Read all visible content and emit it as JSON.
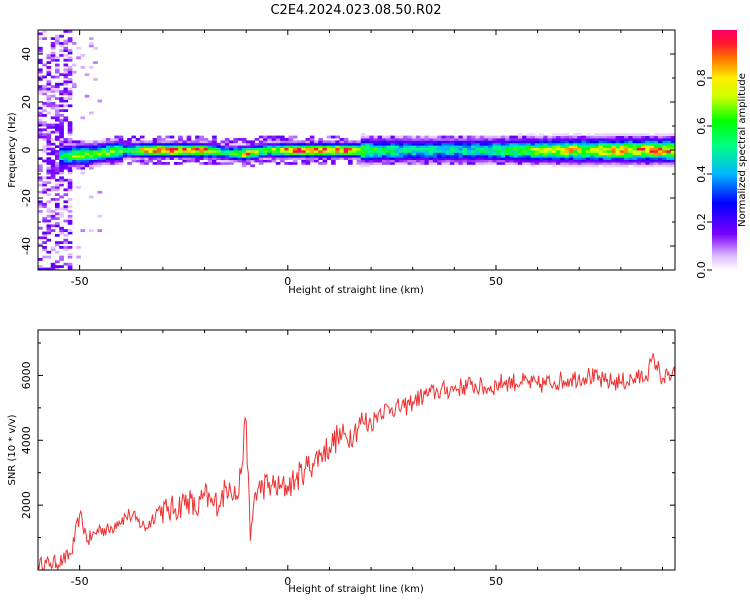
{
  "figure_title": "C2E4.2024.023.08.50.R02",
  "chart_data": [
    {
      "type": "heatmap",
      "xlabel": "Height of straight line (km)",
      "ylabel": "Frequency (Hz)",
      "xlim": [
        -60,
        93
      ],
      "ylim": [
        -50,
        50
      ],
      "x_ticks": [
        -50,
        0,
        50
      ],
      "y_ticks": [
        -40,
        -20,
        0,
        20,
        40
      ],
      "x_tick_labels": [
        "-50",
        "0",
        "50"
      ],
      "y_tick_labels": [
        "-40",
        "-20",
        "0",
        "20",
        "40"
      ],
      "colorbar": {
        "label": "Normalized spectral amplitude",
        "range": [
          0,
          1
        ],
        "ticks": [
          0.0,
          0.2,
          0.4,
          0.6,
          0.8
        ],
        "tick_labels": [
          "0.0",
          "0.2",
          "0.4",
          "0.6",
          "0.8"
        ]
      },
      "ridge_frequency_hz": 0,
      "ridge_profile": [
        {
          "x": -55,
          "amp": 0.55,
          "offset": -2.5
        },
        {
          "x": -50,
          "amp": 0.75,
          "offset": -2
        },
        {
          "x": -46,
          "amp": 0.65,
          "offset": -1.5
        },
        {
          "x": -42,
          "amp": 0.7,
          "offset": -0.5
        },
        {
          "x": -38,
          "amp": 0.6,
          "offset": 0
        },
        {
          "x": -34,
          "amp": 0.85,
          "offset": 0
        },
        {
          "x": -30,
          "amp": 0.95,
          "offset": 0
        },
        {
          "x": -25,
          "amp": 0.9,
          "offset": 0
        },
        {
          "x": -20,
          "amp": 0.95,
          "offset": 0
        },
        {
          "x": -15,
          "amp": 0.5,
          "offset": -1
        },
        {
          "x": -10,
          "amp": 0.9,
          "offset": -1.5
        },
        {
          "x": -5,
          "amp": 0.6,
          "offset": 0
        },
        {
          "x": 0,
          "amp": 0.95,
          "offset": 0
        },
        {
          "x": 5,
          "amp": 0.95,
          "offset": 0
        },
        {
          "x": 10,
          "amp": 0.95,
          "offset": 0
        },
        {
          "x": 15,
          "amp": 0.95,
          "offset": 0
        },
        {
          "x": 20,
          "amp": 0.6,
          "offset": 0
        },
        {
          "x": 30,
          "amp": 0.5,
          "offset": 0
        },
        {
          "x": 40,
          "amp": 0.5,
          "offset": 0
        },
        {
          "x": 50,
          "amp": 0.55,
          "offset": 0
        },
        {
          "x": 60,
          "amp": 0.7,
          "offset": 0
        },
        {
          "x": 70,
          "amp": 0.8,
          "offset": 0
        },
        {
          "x": 80,
          "amp": 0.85,
          "offset": 0
        },
        {
          "x": 90,
          "amp": 0.9,
          "offset": 0
        }
      ]
    },
    {
      "type": "line",
      "xlabel": "Height of straight line (km)",
      "ylabel": "SNR (10 * v/v)",
      "xlim": [
        -60,
        93
      ],
      "ylim": [
        0,
        7400
      ],
      "x_ticks": [
        -50,
        0,
        50
      ],
      "y_ticks": [
        2000,
        4000,
        6000
      ],
      "x_tick_labels": [
        "-50",
        "0",
        "50"
      ],
      "y_tick_labels": [
        "2000",
        "4000",
        "6000"
      ],
      "color": "#ee3333",
      "series": [
        {
          "x": [
            -60,
            -57,
            -54,
            -52,
            -50,
            -48,
            -45,
            -43,
            -41,
            -38,
            -36,
            -34,
            -31,
            -29,
            -27,
            -24,
            -22,
            -20,
            -18,
            -16,
            -14,
            -12,
            -10,
            -9,
            -8,
            -6,
            -4,
            -2,
            0,
            2,
            4,
            6,
            8,
            10,
            12,
            14,
            16,
            18,
            20,
            22,
            25,
            28,
            30,
            33,
            36,
            40,
            44,
            48,
            52,
            56,
            60,
            64,
            68,
            72,
            76,
            80,
            84,
            86,
            88,
            90,
            93
          ],
          "y": [
            150,
            200,
            300,
            500,
            1700,
            900,
            1300,
            1200,
            1500,
            1700,
            1500,
            1300,
            1900,
            1800,
            1900,
            2200,
            1800,
            2300,
            2000,
            2200,
            2700,
            2200,
            4600,
            900,
            2300,
            2600,
            2600,
            2500,
            2600,
            2800,
            3100,
            3300,
            3600,
            3800,
            4100,
            4100,
            4300,
            4600,
            4500,
            4900,
            5000,
            5000,
            5200,
            5400,
            5500,
            5600,
            5700,
            5600,
            5800,
            5800,
            5700,
            5800,
            5900,
            6000,
            5800,
            5800,
            5900,
            6000,
            6500,
            5900,
            6000
          ]
        }
      ]
    }
  ]
}
